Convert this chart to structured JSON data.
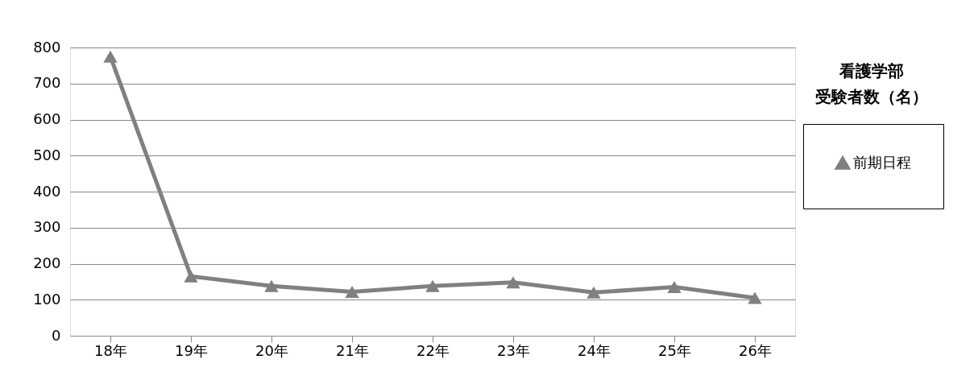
{
  "chart_data": {
    "type": "line",
    "title": "看護学部",
    "subtitle": "受験者数（名）",
    "categories": [
      "18年",
      "19年",
      "20年",
      "21年",
      "22年",
      "23年",
      "24年",
      "25年",
      "26年"
    ],
    "series": [
      {
        "name": "前期日程",
        "color": "#808080",
        "values": [
          775,
          165,
          138,
          122,
          138,
          148,
          120,
          135,
          105
        ]
      }
    ],
    "ylim": [
      0,
      800
    ],
    "yticks": [
      0,
      100,
      200,
      300,
      400,
      500,
      600,
      700,
      800
    ],
    "grid": "y",
    "legend": "right",
    "marker": "triangle",
    "line_style": "solid"
  }
}
